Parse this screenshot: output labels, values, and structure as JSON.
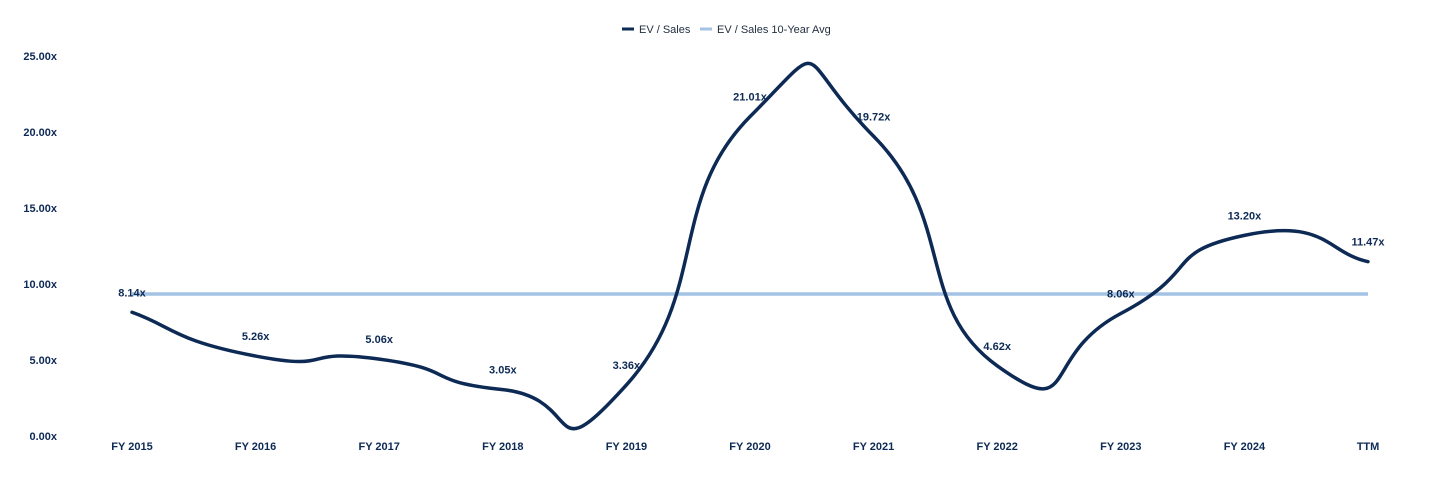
{
  "chart_data": {
    "type": "line",
    "categories": [
      "FY 2015",
      "FY 2016",
      "FY 2017",
      "FY 2018",
      "FY 2019",
      "FY 2020",
      "FY 2021",
      "FY 2022",
      "FY 2023",
      "FY 2024",
      "TTM"
    ],
    "series": [
      {
        "name": "EV / Sales",
        "values": [
          8.14,
          5.26,
          5.06,
          3.05,
          3.36,
          21.01,
          19.72,
          4.62,
          8.06,
          13.2,
          11.47
        ],
        "labels": [
          "8.14x",
          "5.26x",
          "5.06x",
          "3.05x",
          "3.36x",
          "21.01x",
          "19.72x",
          "4.62x",
          "8.06x",
          "13.20x",
          "11.47x"
        ],
        "color": "#0d2a55",
        "smooth": true
      },
      {
        "name": "EV / Sales 10-Year Avg",
        "values": [
          9.34,
          9.34,
          9.34,
          9.34,
          9.34,
          9.34,
          9.34,
          9.34,
          9.34,
          9.34,
          9.34
        ],
        "color": "#a4c2e4"
      }
    ],
    "yticks": [
      "0.00x",
      "5.00x",
      "10.00x",
      "15.00x",
      "20.00x",
      "25.00x"
    ],
    "ylim": [
      0,
      25
    ],
    "legend_position": "top-center",
    "grid": false
  }
}
